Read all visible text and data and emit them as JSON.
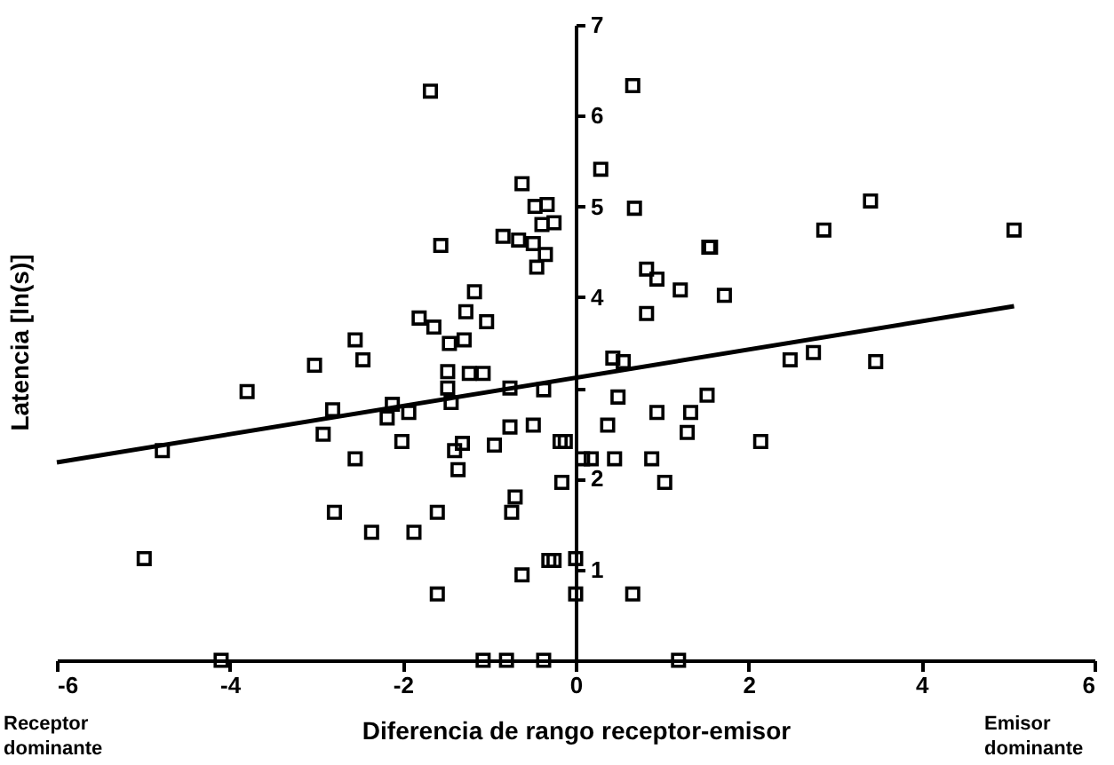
{
  "chart_data": {
    "type": "scatter",
    "xlabel": "Diferencia de rango receptor-emisor",
    "ylabel": "Latencia [ln(s)]",
    "annotations": [
      "Receptor dominante",
      "Emisor dominante"
    ],
    "xlim": [
      -6,
      6
    ],
    "xticks": [
      -6,
      -4,
      -2,
      0,
      2,
      4,
      6
    ],
    "ylim": [
      0,
      7
    ],
    "yticks": [
      1,
      2,
      {
        "value": 3,
        "label": null
      },
      4,
      5,
      6,
      7
    ],
    "series": [
      {
        "marker": "square",
        "color": "#000000",
        "x": [
          -1.68,
          0.66,
          0.29,
          -0.62,
          0.68,
          -0.47,
          -0.33,
          -0.39,
          -0.25,
          -0.84,
          -0.66,
          -0.49,
          -0.35,
          -0.45,
          2.87,
          3.41,
          5.07,
          1.54,
          1.56,
          0.82,
          0.94,
          1.21,
          1.72,
          0.82,
          0.43,
          0.55,
          2.48,
          2.75,
          3.47,
          -1.56,
          -1.17,
          -1.27,
          -1.03,
          -1.81,
          -1.64,
          -1.29,
          -1.46,
          -3.02,
          -2.46,
          -2.55,
          -3.8,
          -1.48,
          -1.23,
          -1.07,
          -2.81,
          -2.92,
          -4.78,
          -2.55,
          -2.12,
          -2.18,
          -1.93,
          -2.01,
          -1.48,
          -1.44,
          -1.4,
          -1.31,
          -1.36,
          -0.94,
          -0.76,
          -0.49,
          -0.76,
          -0.37,
          -2.79,
          -2.36,
          -1.87,
          -1.6,
          -0.7,
          -0.74,
          -4.99,
          -0.62,
          -1.6,
          -0.31,
          -0.18,
          -4.1,
          -1.07,
          -0.8,
          -0.37,
          0.49,
          0.94,
          1.33,
          1.52,
          0.37,
          1.29,
          2.14,
          -0.12,
          0.08,
          0.18,
          0.45,
          0.88,
          1.03,
          -0.16,
          -0.25,
          0,
          0,
          0.66,
          1.19
        ],
        "values": [
          6.27,
          6.33,
          5.41,
          5.25,
          4.98,
          5.0,
          5.02,
          4.8,
          4.82,
          4.67,
          4.63,
          4.59,
          4.47,
          4.33,
          4.74,
          5.06,
          4.74,
          4.55,
          4.55,
          4.31,
          4.2,
          4.08,
          4.02,
          3.82,
          3.33,
          3.29,
          3.31,
          3.39,
          3.29,
          4.57,
          4.06,
          3.84,
          3.73,
          3.77,
          3.67,
          3.53,
          3.49,
          3.25,
          3.31,
          3.53,
          2.96,
          3.18,
          3.16,
          3.16,
          2.76,
          2.49,
          2.31,
          2.22,
          2.82,
          2.67,
          2.73,
          2.41,
          3.0,
          2.84,
          2.31,
          2.39,
          2.1,
          2.37,
          2.57,
          2.59,
          3.0,
          2.98,
          1.63,
          1.41,
          1.41,
          1.63,
          1.8,
          1.63,
          1.12,
          0.94,
          0.73,
          1.1,
          2.41,
          0,
          0,
          0,
          0,
          2.9,
          2.73,
          2.73,
          2.92,
          2.59,
          2.51,
          2.41,
          2.41,
          2.22,
          2.22,
          2.22,
          2.22,
          1.96,
          1.96,
          1.1,
          1.12,
          0.73,
          0.73,
          0
        ]
      },
      {
        "type": "line",
        "marker": "none",
        "color": "#000000",
        "x": [
          -6,
          5.07
        ],
        "values": [
          2.18,
          3.9
        ]
      }
    ]
  }
}
